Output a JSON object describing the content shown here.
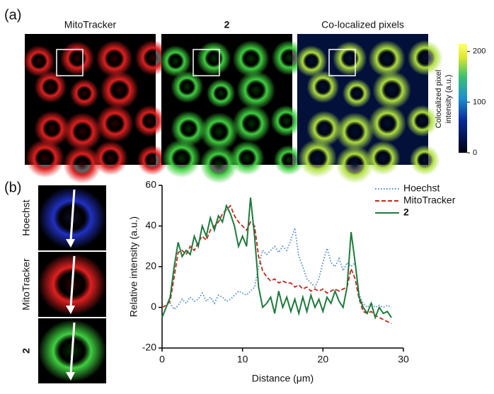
{
  "panel_a": {
    "label": "(a)",
    "images": [
      "MitoTracker",
      "2",
      "Co-localized pixels"
    ],
    "colorbar": {
      "label": [
        "Colocalized pixel",
        "intensity (a.u.)"
      ],
      "lim": [
        0,
        215
      ],
      "ticks": [
        0,
        100,
        200
      ]
    }
  },
  "panel_b": {
    "label": "(b)",
    "images": [
      "Hoechst",
      "MitoTracker",
      "2"
    ]
  },
  "chart_data": {
    "type": "line",
    "x_label": "Distance (μm)",
    "y_label": "Relative intensity (a.u.)",
    "xlim": [
      0,
      30
    ],
    "xticks": [
      0,
      10,
      20,
      30
    ],
    "ylim": [
      -20,
      60
    ],
    "yticks": [
      -20,
      0,
      20,
      40,
      60
    ],
    "legend": "top-right",
    "x": [
      0,
      0.5,
      1,
      1.5,
      2,
      2.5,
      3,
      3.5,
      4,
      4.5,
      5,
      5.5,
      6,
      6.5,
      7,
      7.5,
      8,
      8.5,
      9,
      9.5,
      10,
      10.5,
      11,
      11.5,
      12,
      12.5,
      13,
      13.5,
      14,
      14.5,
      15,
      15.5,
      16,
      16.5,
      17,
      17.5,
      18,
      18.5,
      19,
      19.5,
      20,
      20.5,
      21,
      21.5,
      22,
      22.5,
      23,
      23.5,
      24,
      24.5,
      25,
      25.5,
      26,
      26.5,
      27,
      27.5,
      28,
      28.5
    ],
    "series": [
      {
        "name": "Hoechst",
        "color": "#4a86c5",
        "style": "dotted",
        "values": [
          0,
          1,
          2,
          -1,
          1,
          4,
          2,
          5,
          3,
          4,
          7,
          3,
          5,
          2,
          6,
          5,
          3,
          4,
          6,
          8,
          7,
          6,
          8,
          10,
          20,
          28,
          26,
          28,
          30,
          27,
          30,
          28,
          33,
          39,
          25,
          20,
          14,
          12,
          10,
          14,
          22,
          29,
          22,
          20,
          24,
          18,
          22,
          20,
          22,
          6,
          2,
          0,
          2,
          0,
          1,
          0,
          1,
          0
        ]
      },
      {
        "name": "MitoTracker",
        "color": "#c0281e",
        "style": "dashed",
        "values": [
          0,
          1,
          3,
          15,
          27,
          28,
          26,
          30,
          28,
          32,
          35,
          33,
          38,
          40,
          42,
          46,
          48,
          50,
          45,
          42,
          40,
          38,
          42,
          40,
          25,
          18,
          15,
          13,
          14,
          12,
          13,
          12,
          12,
          10,
          11,
          9,
          10,
          8,
          9,
          8,
          9,
          7,
          8,
          9,
          8,
          9,
          10,
          19,
          14,
          4,
          -2,
          -3,
          -2,
          -4,
          -5,
          -6,
          -7,
          -8
        ]
      },
      {
        "name": "2",
        "color": "#1e7a3c",
        "style": "solid",
        "values": [
          -5,
          0,
          5,
          20,
          32,
          25,
          28,
          26,
          35,
          30,
          40,
          35,
          44,
          38,
          45,
          42,
          50,
          46,
          40,
          30,
          35,
          30,
          54,
          35,
          10,
          0,
          2,
          5,
          -3,
          8,
          0,
          5,
          -2,
          4,
          -3,
          5,
          -2,
          6,
          0,
          4,
          -2,
          5,
          2,
          8,
          3,
          0,
          10,
          37,
          22,
          5,
          0,
          -3,
          2,
          -5,
          0,
          -3,
          -2,
          -5
        ]
      }
    ]
  }
}
